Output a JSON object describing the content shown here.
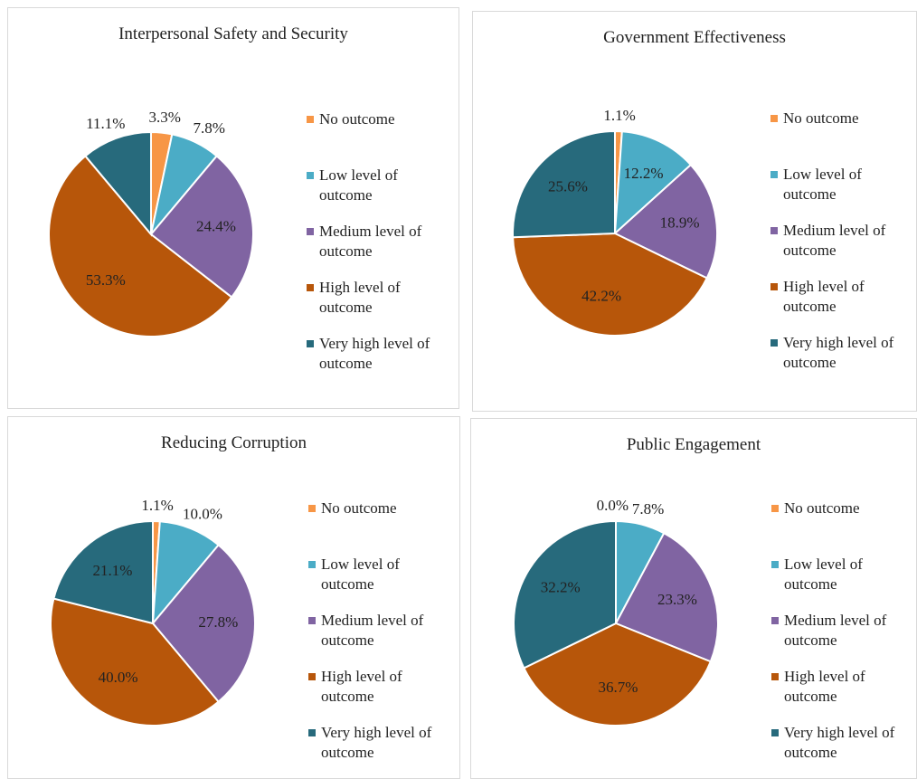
{
  "chart_data": [
    {
      "type": "pie",
      "title": "Interpersonal Safety and Security",
      "categories": [
        "No outcome",
        "Low level of outcome",
        "Medium level of outcome",
        "High level of outcome",
        "Very high level of outcome"
      ],
      "values": [
        3.3,
        7.8,
        24.4,
        53.3,
        11.1
      ],
      "value_labels": [
        "3.3%",
        "7.8%",
        "24.4%",
        "53.3%",
        "11.1%"
      ],
      "colors": [
        "#f79646",
        "#4bacc6",
        "#8064a2",
        "#b7560a",
        "#276a7c"
      ]
    },
    {
      "type": "pie",
      "title": "Government Effectiveness",
      "categories": [
        "No outcome",
        "Low level of outcome",
        "Medium level of outcome",
        "High level of outcome",
        "Very high level of outcome"
      ],
      "values": [
        1.1,
        12.2,
        18.9,
        42.2,
        25.6
      ],
      "value_labels": [
        "1.1%",
        "12.2%",
        "18.9%",
        "42.2%",
        "25.6%"
      ],
      "colors": [
        "#f79646",
        "#4bacc6",
        "#8064a2",
        "#b7560a",
        "#276a7c"
      ]
    },
    {
      "type": "pie",
      "title": "Reducing Corruption",
      "categories": [
        "No outcome",
        "Low level of outcome",
        "Medium level of outcome",
        "High level of outcome",
        "Very high level of outcome"
      ],
      "values": [
        1.1,
        10.0,
        27.8,
        40.0,
        21.1
      ],
      "value_labels": [
        "1.1%",
        "10.0%",
        "27.8%",
        "40.0%",
        "21.1%"
      ],
      "colors": [
        "#f79646",
        "#4bacc6",
        "#8064a2",
        "#b7560a",
        "#276a7c"
      ]
    },
    {
      "type": "pie",
      "title": "Public Engagement",
      "categories": [
        "No outcome",
        "Low level of outcome",
        "Medium level of outcome",
        "High level of outcome",
        "Very high level of outcome"
      ],
      "values": [
        0.0,
        7.8,
        23.3,
        36.7,
        32.2
      ],
      "value_labels": [
        "0.0%",
        "7.8%",
        "23.3%",
        "36.7%",
        "32.2%"
      ],
      "colors": [
        "#f79646",
        "#4bacc6",
        "#8064a2",
        "#b7560a",
        "#276a7c"
      ]
    }
  ]
}
